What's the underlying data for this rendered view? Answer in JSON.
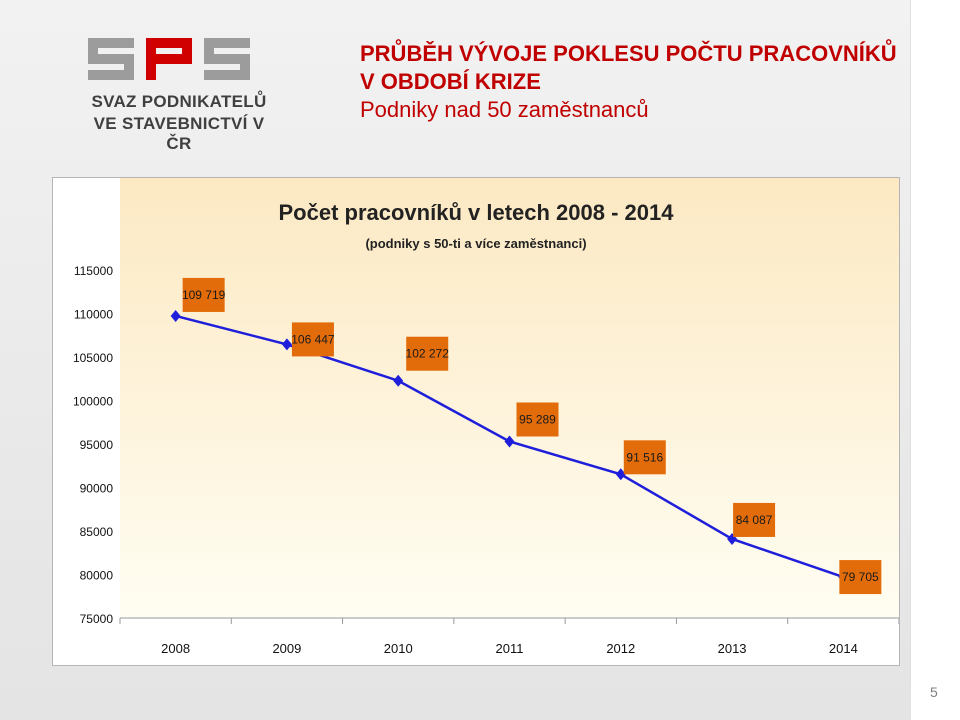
{
  "logo": {
    "brand": "SPS",
    "line1": "SVAZ PODNIKATELŮ",
    "line2": "VE STAVEBNICTVÍ V ČR"
  },
  "slide": {
    "title_line1": "PRŮBĚH VÝVOJE POKLESU POČTU PRACOVNÍKŮ",
    "title_line2": "V OBDOBÍ KRIZE",
    "title_line3": "Podniky nad 50 zaměstnanců",
    "page_number": "5"
  },
  "colors": {
    "title_red": "#c00000",
    "line": "#1f1fdb",
    "marker": "#1f1fdb",
    "label_bg": "#e36c0a",
    "plot_bg_top": "#fce9c3",
    "plot_bg_bottom": "#fffdf2"
  },
  "chart_data": {
    "type": "line",
    "title": "Počet pracovníků v letech 2008 - 2014",
    "subtitle": "(podniky s 50-ti a více zaměstnanci)",
    "categories": [
      "2008",
      "2009",
      "2010",
      "2011",
      "2012",
      "2013",
      "2014"
    ],
    "series": [
      {
        "values": [
          109719,
          106447,
          102272,
          95289,
          91516,
          84087,
          79705
        ],
        "labels": [
          "109 719",
          "106 447",
          "102 272",
          "95 289",
          "91 516",
          "84 087",
          "79 705"
        ]
      }
    ],
    "yticks": [
      "115000",
      "110000",
      "105000",
      "100000",
      "95000",
      "90000",
      "85000",
      "80000",
      "75000"
    ],
    "ylim": [
      75000,
      115000
    ],
    "grid": false,
    "legend": "none"
  }
}
